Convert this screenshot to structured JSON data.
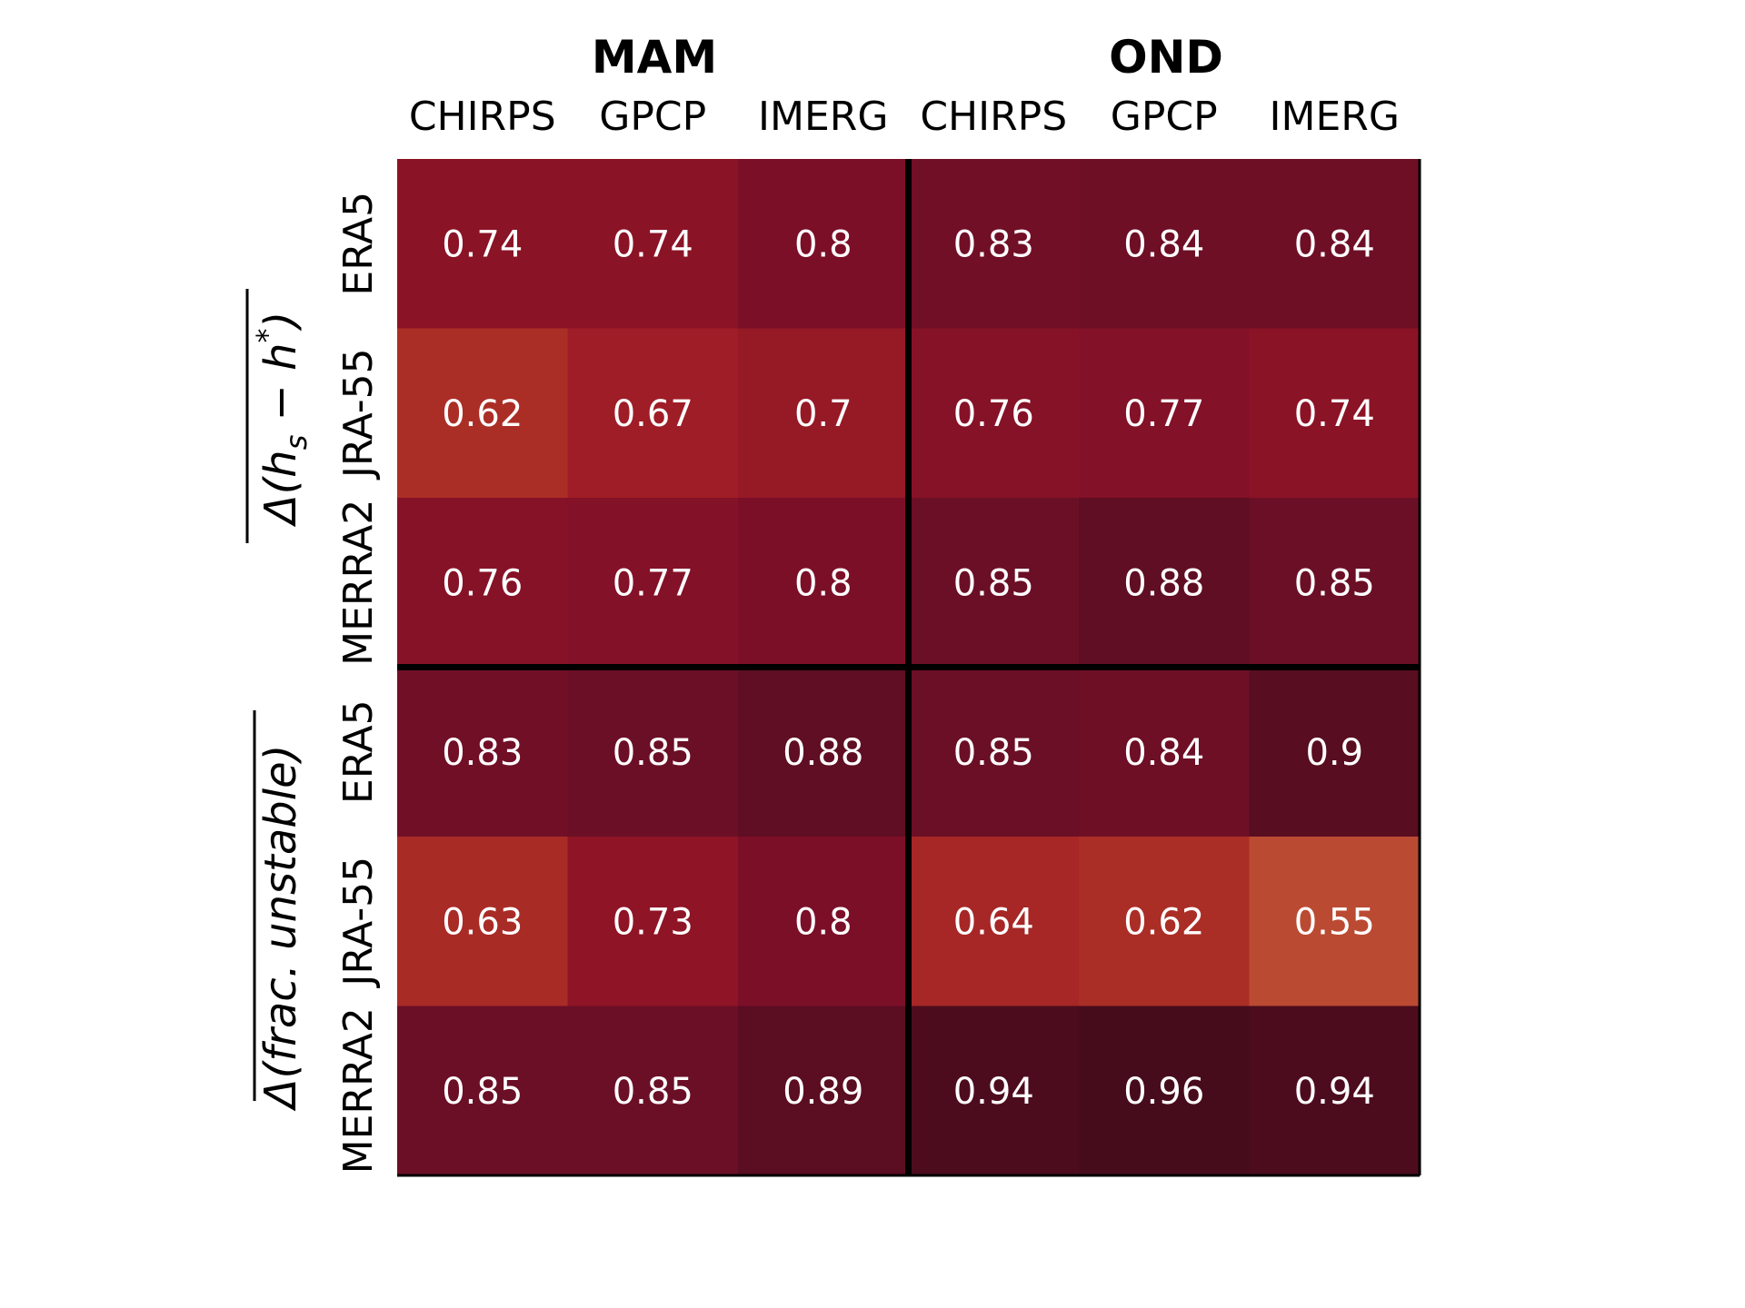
{
  "chart_data": {
    "type": "heatmap",
    "seasons": [
      "MAM",
      "OND"
    ],
    "column_labels": [
      "CHIRPS",
      "GPCP",
      "IMERG",
      "CHIRPS",
      "GPCP",
      "IMERG"
    ],
    "row_labels": [
      "ERA5",
      "JRA-55",
      "MERRA2",
      "ERA5",
      "JRA-55",
      "MERRA2"
    ],
    "row_groups": [
      {
        "label": "Δ(h_s − h*)",
        "rows": [
          0,
          1,
          2
        ]
      },
      {
        "label": "Δ(frac. unstable)",
        "rows": [
          3,
          4,
          5
        ]
      }
    ],
    "values": [
      [
        0.74,
        0.74,
        0.8,
        0.83,
        0.84,
        0.84
      ],
      [
        0.62,
        0.67,
        0.7,
        0.76,
        0.77,
        0.74
      ],
      [
        0.76,
        0.77,
        0.8,
        0.85,
        0.88,
        0.85
      ],
      [
        0.83,
        0.85,
        0.88,
        0.85,
        0.84,
        0.9
      ],
      [
        0.63,
        0.73,
        0.8,
        0.64,
        0.62,
        0.55
      ],
      [
        0.85,
        0.85,
        0.89,
        0.94,
        0.96,
        0.94
      ]
    ],
    "value_labels": [
      [
        "0.74",
        "0.74",
        "0.8",
        "0.83",
        "0.84",
        "0.84"
      ],
      [
        "0.62",
        "0.67",
        "0.7",
        "0.76",
        "0.77",
        "0.74"
      ],
      [
        "0.76",
        "0.77",
        "0.8",
        "0.85",
        "0.88",
        "0.85"
      ],
      [
        "0.83",
        "0.85",
        "0.88",
        "0.85",
        "0.84",
        "0.9"
      ],
      [
        "0.63",
        "0.73",
        "0.8",
        "0.64",
        "0.62",
        "0.55"
      ],
      [
        "0.85",
        "0.85",
        "0.89",
        "0.94",
        "0.96",
        "0.94"
      ]
    ],
    "colormap": {
      "stops": [
        {
          "value": 0.55,
          "color": "#bb4a32"
        },
        {
          "value": 0.62,
          "color": "#ab2e26"
        },
        {
          "value": 0.67,
          "color": "#9f1d26"
        },
        {
          "value": 0.74,
          "color": "#8b1326"
        },
        {
          "value": 0.8,
          "color": "#7b0f28"
        },
        {
          "value": 0.85,
          "color": "#6b0f26"
        },
        {
          "value": 0.89,
          "color": "#5b0d22"
        },
        {
          "value": 0.96,
          "color": "#470c1b"
        }
      ]
    },
    "text_color": "#ffffff",
    "divider_color": "#000000"
  }
}
